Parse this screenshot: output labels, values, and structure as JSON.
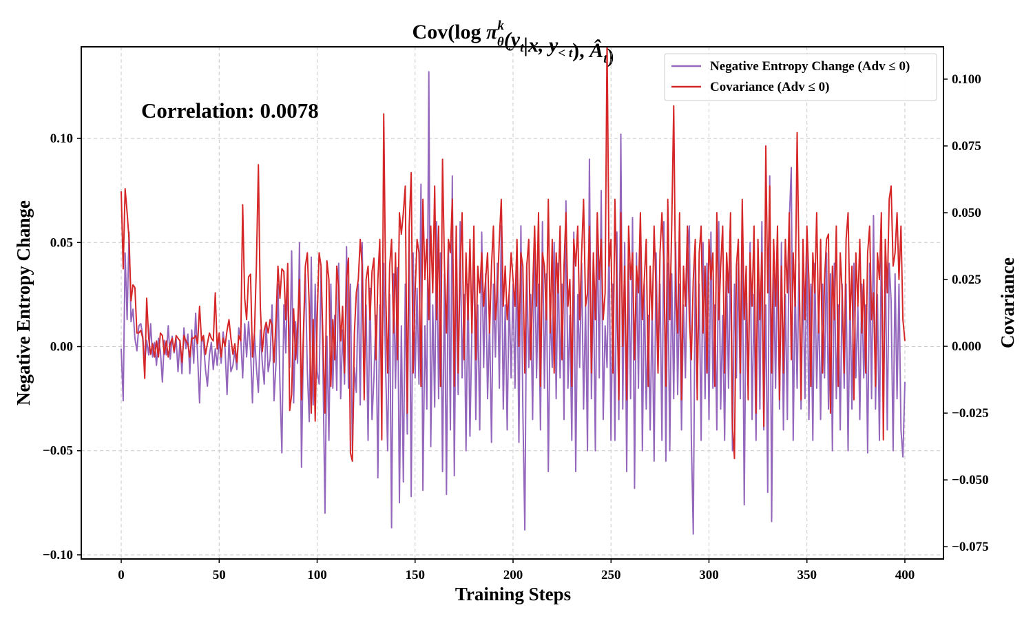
{
  "chart_data": {
    "type": "line",
    "title_parts": [
      {
        "text": "Cov(log "
      },
      {
        "text": "π",
        "italic": true
      },
      {
        "sub": "θ",
        "sup": "k"
      },
      {
        "text": "(y",
        "italic": true
      },
      {
        "sub": "t"
      },
      {
        "text": "|x, y",
        "italic": true
      },
      {
        "sub": "< t"
      },
      {
        "text": "), "
      },
      {
        "text": "Â",
        "italic": true
      },
      {
        "sub": "t"
      },
      {
        "text": ")"
      }
    ],
    "xlabel": "Training Steps",
    "ylabel_left": "Negative Entropy Change",
    "ylabel_right": "Covariance",
    "annotation": "Correlation: 0.0078",
    "xlim": [
      -20.4,
      419.7
    ],
    "ylim_left": [
      -0.102,
      0.144
    ],
    "ylim_right": [
      -0.0796,
      0.1121
    ],
    "x_ticks": [
      0,
      50,
      100,
      150,
      200,
      250,
      300,
      350,
      400
    ],
    "x_tick_labels": [
      "0",
      "50",
      "100",
      "150",
      "200",
      "250",
      "300",
      "350",
      "400"
    ],
    "y_left_ticks": [
      0.1,
      0.05,
      0.0,
      -0.05,
      -0.1
    ],
    "y_left_tick_labels": [
      "0.10",
      "0.05",
      "0.00",
      "−0.05",
      "−0.10"
    ],
    "y_right_ticks": [
      0.1,
      0.075,
      0.05,
      0.025,
      0.0,
      -0.025,
      -0.05,
      -0.075
    ],
    "y_right_tick_labels": [
      "0.100",
      "0.075",
      "0.050",
      "0.025",
      "0.000",
      "−0.025",
      "−0.050",
      "−0.075"
    ],
    "grid": true,
    "legend_position": "top-right",
    "x_start": 0,
    "x_step": 1,
    "series": [
      {
        "name": "Negative Entropy Change (Adv ≤ 0)",
        "axis": "left",
        "color": "#9467bd",
        "values": [
          -0.001,
          -0.026,
          0.045,
          0.013,
          0.055,
          0.012,
          0.018,
          0.004,
          -0.002,
          0.01,
          0.011,
          0.005,
          -0.008,
          0.003,
          -0.004,
          0.011,
          -0.005,
          0.002,
          -0.009,
          0.004,
          -0.002,
          -0.017,
          0.003,
          -0.004,
          0.01,
          -0.006,
          0.005,
          -0.003,
          0.004,
          -0.012,
          0.003,
          -0.013,
          0.009,
          -0.001,
          0.006,
          -0.013,
          0.008,
          -0.008,
          0.016,
          -0.005,
          -0.027,
          0.005,
          0.002,
          -0.011,
          -0.019,
          -0.004,
          0.002,
          -0.011,
          -0.001,
          -0.009,
          0.004,
          -0.008,
          0.007,
          -0.001,
          -0.023,
          0.003,
          -0.012,
          -0.009,
          -0.002,
          -0.011,
          0.009,
          0.004,
          -0.015,
          0.011,
          -0.005,
          0.012,
          -0.002,
          -0.027,
          0.006,
          -0.01,
          -0.022,
          0.008,
          -0.008,
          -0.018,
          0.011,
          -0.012,
          -0.006,
          0.02,
          -0.026,
          -0.008,
          0.03,
          -0.018,
          -0.051,
          0.02,
          -0.003,
          0.035,
          -0.01,
          0.046,
          -0.027,
          0.012,
          -0.008,
          0.05,
          -0.058,
          0.004,
          0.035,
          -0.012,
          -0.036,
          0.043,
          -0.028,
          0.03,
          -0.012,
          -0.018,
          0.038,
          -0.01,
          -0.08,
          0.005,
          -0.045,
          0.03,
          -0.02,
          0.015,
          -0.021,
          0.04,
          -0.025,
          0.008,
          -0.018,
          0.048,
          -0.02,
          0.03,
          -0.05,
          -0.01,
          -0.022,
          0.03,
          -0.028,
          0.05,
          -0.016,
          0.02,
          -0.045,
          0.028,
          -0.035,
          -0.015,
          0.015,
          -0.063,
          0.02,
          -0.02,
          0.04,
          -0.012,
          -0.05,
          0.025,
          -0.087,
          0.035,
          -0.02,
          0.038,
          -0.075,
          0.01,
          -0.065,
          0.03,
          -0.042,
          0.056,
          -0.072,
          0.045,
          -0.015,
          0.028,
          -0.018,
          0.078,
          -0.069,
          0.01,
          -0.03,
          0.132,
          -0.048,
          0.02,
          -0.029,
          0.06,
          -0.025,
          0.045,
          -0.06,
          0.035,
          -0.071,
          0.05,
          -0.04,
          0.082,
          -0.062,
          0.04,
          -0.023,
          0.06,
          -0.015,
          0.025,
          -0.05,
          0.03,
          -0.043,
          0.01,
          0.045,
          -0.035,
          0.02,
          -0.04,
          0.055,
          -0.01,
          0.035,
          -0.025,
          0.012,
          -0.046,
          0.03,
          -0.005,
          0.04,
          -0.02,
          0.058,
          -0.03,
          0.02,
          -0.04,
          0.025,
          -0.015,
          0.03,
          -0.02,
          0.045,
          -0.046,
          0.058,
          -0.03,
          -0.088,
          0.04,
          -0.01,
          0.025,
          -0.035,
          0.05,
          -0.015,
          0.03,
          -0.04,
          0.06,
          -0.02,
          0.035,
          -0.06,
          0.02,
          -0.01,
          0.05,
          -0.025,
          0.04,
          -0.015,
          0.03,
          -0.035,
          0.07,
          -0.02,
          0.015,
          -0.045,
          0.055,
          -0.06,
          0.025,
          -0.01,
          0.04,
          -0.03,
          0.02,
          -0.05,
          0.09,
          -0.025,
          0.035,
          -0.05,
          0.06,
          -0.015,
          0.075,
          -0.035,
          0.01,
          -0.01,
          0.05,
          -0.045,
          0.03,
          -0.045,
          0.055,
          -0.035,
          0.102,
          -0.03,
          0.05,
          -0.06,
          0.04,
          -0.025,
          0.062,
          -0.068,
          0.045,
          -0.02,
          0.055,
          -0.05,
          0.03,
          -0.03,
          0.015,
          -0.04,
          0.02,
          -0.055,
          0.045,
          -0.01,
          0.03,
          -0.045,
          0.06,
          -0.055,
          0.04,
          -0.05,
          0.035,
          -0.025,
          0.05,
          -0.023,
          0.03,
          -0.04,
          0.02,
          -0.015,
          0.045,
          0.058,
          -0.045,
          -0.09,
          0.04,
          -0.02,
          0.03,
          -0.045,
          0.05,
          -0.025,
          0.04,
          -0.035,
          0.055,
          -0.02,
          0.02,
          -0.04,
          0.06,
          -0.03,
          0.015,
          -0.045,
          0.035,
          -0.02,
          0.045,
          -0.05,
          0.03,
          -0.015,
          0.04,
          -0.025,
          0.055,
          -0.076,
          0.03,
          -0.02,
          0.05,
          -0.035,
          0.025,
          -0.045,
          0.04,
          -0.03,
          0.06,
          -0.04,
          0.02,
          -0.07,
          0.082,
          -0.084,
          0.035,
          -0.02,
          0.045,
          -0.03,
          0.05,
          -0.04,
          0.025,
          -0.035,
          0.06,
          0.086,
          -0.045,
          0.03,
          -0.02,
          0.04,
          -0.03,
          0.035,
          -0.025,
          0.05,
          -0.035,
          0.03,
          -0.045,
          0.04,
          -0.02,
          0.02,
          -0.035,
          0.03,
          -0.015,
          0.045,
          -0.03,
          0.035,
          -0.05,
          0.04,
          -0.025,
          0.02,
          -0.04,
          0.03,
          -0.02,
          0.03,
          -0.05,
          0.025,
          -0.03,
          0.04,
          -0.015,
          0.02,
          -0.035,
          0.03,
          -0.015,
          0.02,
          -0.051,
          0.04,
          -0.025,
          0.063,
          -0.03,
          0.025,
          -0.045,
          0.05,
          -0.03,
          0.045,
          -0.04,
          0.04,
          0.022,
          -0.05,
          0.035,
          -0.025,
          0.03,
          -0.04,
          -0.053,
          -0.017
        ]
      },
      {
        "name": "Covariance (Adv ≤ 0)",
        "axis": "right",
        "color": "#d62728",
        "values": [
          0.058,
          0.029,
          0.059,
          0.05,
          0.04,
          0.017,
          0.023,
          0.022,
          0.005,
          0.005,
          0.006,
          0.003,
          -0.012,
          0.018,
          0.003,
          -0.003,
          0.001,
          -0.004,
          0.002,
          -0.004,
          0.005,
          0.004,
          -0.003,
          0.002,
          -0.004,
          0.001,
          0.003,
          -0.002,
          0.004,
          0.003,
          0.002,
          -0.006,
          0.004,
          0.002,
          0.001,
          -0.004,
          0.003,
          0.003,
          0.004,
          0.001,
          0.015,
          0.002,
          0.004,
          -0.003,
          0.001,
          0.005,
          0.003,
          0.002,
          0.02,
          -0.001,
          0.005,
          -0.004,
          0.003,
          0.0,
          0.006,
          0.01,
          0.003,
          -0.003,
          0.001,
          -0.006,
          0.004,
          0.002,
          0.053,
          0.018,
          0.01,
          0.026,
          0.027,
          -0.004,
          0.005,
          0.03,
          0.068,
          0.015,
          -0.002,
          0.006,
          0.009,
          0.005,
          0.01,
          0.008,
          -0.006,
          0.01,
          0.03,
          0.018,
          0.029,
          0.028,
          0.01,
          0.031,
          -0.024,
          -0.018,
          0.014,
          -0.005,
          0.007,
          0.025,
          -0.02,
          0.005,
          0.03,
          0.035,
          0.015,
          -0.025,
          0.01,
          -0.028,
          0.01,
          0.035,
          0.03,
          0.002,
          -0.025,
          0.032,
          0.025,
          -0.015,
          0.01,
          -0.005,
          0.03,
          0.022,
          0.002,
          0.015,
          -0.01,
          0.025,
          0.033,
          -0.04,
          -0.043,
          0.005,
          0.02,
          0.025,
          0.04,
          0.03,
          -0.02,
          0.025,
          0.03,
          0.01,
          0.028,
          0.033,
          -0.005,
          0.025,
          0.04,
          -0.035,
          0.087,
          0.02,
          -0.01,
          0.03,
          0.04,
          0.005,
          0.035,
          -0.005,
          0.05,
          0.042,
          0.05,
          0.06,
          -0.025,
          0.045,
          0.065,
          -0.01,
          0.02,
          0.04,
          0.035,
          -0.015,
          0.055,
          0.025,
          0.04,
          0.01,
          0.045,
          0.02,
          0.06,
          0.01,
          0.045,
          -0.015,
          0.07,
          0.03,
          0.005,
          0.04,
          0.035,
          0.055,
          -0.015,
          0.045,
          -0.01,
          0.03,
          0.05,
          -0.005,
          0.035,
          0.01,
          0.04,
          0.005,
          0.045,
          -0.005,
          0.03,
          0.02,
          0.035,
          0.015,
          0.025,
          0.035,
          0.005,
          0.03,
          0.045,
          0.01,
          0.02,
          0.04,
          0.055,
          0.015,
          0.03,
          0.01,
          0.02,
          0.035,
          0.025,
          0.015,
          0.04,
          0.0,
          0.035,
          0.03,
          -0.01,
          0.03,
          0.04,
          -0.005,
          0.02,
          0.045,
          0.015,
          0.05,
          -0.015,
          0.035,
          0.03,
          0.01,
          0.055,
          0.005,
          0.04,
          -0.01,
          0.035,
          0.02,
          0.045,
          -0.005,
          0.03,
          0.05,
          0.015,
          0.025,
          -0.015,
          0.04,
          0.03,
          0.045,
          0.01,
          0.035,
          0.055,
          0.015,
          0.02,
          0.045,
          -0.01,
          0.035,
          0.01,
          0.05,
          0.025,
          0.04,
          0.01,
          0.02,
          0.115,
          0.03,
          0.04,
          -0.01,
          0.055,
          0.02,
          -0.02,
          0.05,
          0.0,
          0.03,
          -0.02,
          0.045,
          0.025,
          0.035,
          -0.005,
          0.03,
          0.02,
          0.05,
          0.01,
          0.025,
          0.04,
          -0.015,
          0.03,
          0.01,
          0.045,
          0.02,
          -0.01,
          0.035,
          0.05,
          0.03,
          -0.015,
          0.055,
          0.01,
          0.045,
          0.09,
          0.02,
          0.005,
          0.05,
          -0.02,
          0.03,
          0.015,
          0.045,
          0.01,
          -0.005,
          0.025,
          0.04,
          -0.02,
          0.035,
          0.045,
          0.005,
          0.03,
          -0.01,
          0.04,
          0.025,
          0.035,
          -0.015,
          0.05,
          0.01,
          0.03,
          0.045,
          -0.01,
          0.035,
          0.02,
          0.05,
          -0.03,
          -0.042,
          0.03,
          0.04,
          -0.01,
          0.055,
          0.01,
          0.03,
          -0.02,
          0.035,
          0.015,
          0.045,
          -0.025,
          0.04,
          0.01,
          0.035,
          -0.03,
          0.075,
          0.02,
          0.06,
          -0.01,
          0.04,
          0.015,
          0.045,
          -0.02,
          0.03,
          -0.01,
          0.04,
          0.02,
          0.05,
          -0.005,
          0.035,
          0.015,
          0.08,
          0.03,
          -0.02,
          0.04,
          0.01,
          0.045,
          0.025,
          -0.015,
          0.035,
          0.02,
          0.05,
          0.005,
          0.04,
          -0.01,
          0.025,
          0.04,
          0.042,
          -0.025,
          0.03,
          0.01,
          0.045,
          -0.015,
          0.035,
          0.02,
          -0.01,
          0.04,
          0.05,
          0.01,
          0.03,
          -0.02,
          0.035,
          0.015,
          0.04,
          0.005,
          0.025,
          -0.01,
          0.035,
          0.045,
          0.01,
          0.02,
          -0.015,
          0.035,
          0.025,
          0.05,
          -0.035,
          0.04,
          0.02,
          0.055,
          0.06,
          0.03,
          0.035,
          0.05,
          0.025,
          0.045,
          0.01,
          0.002
        ]
      }
    ]
  }
}
